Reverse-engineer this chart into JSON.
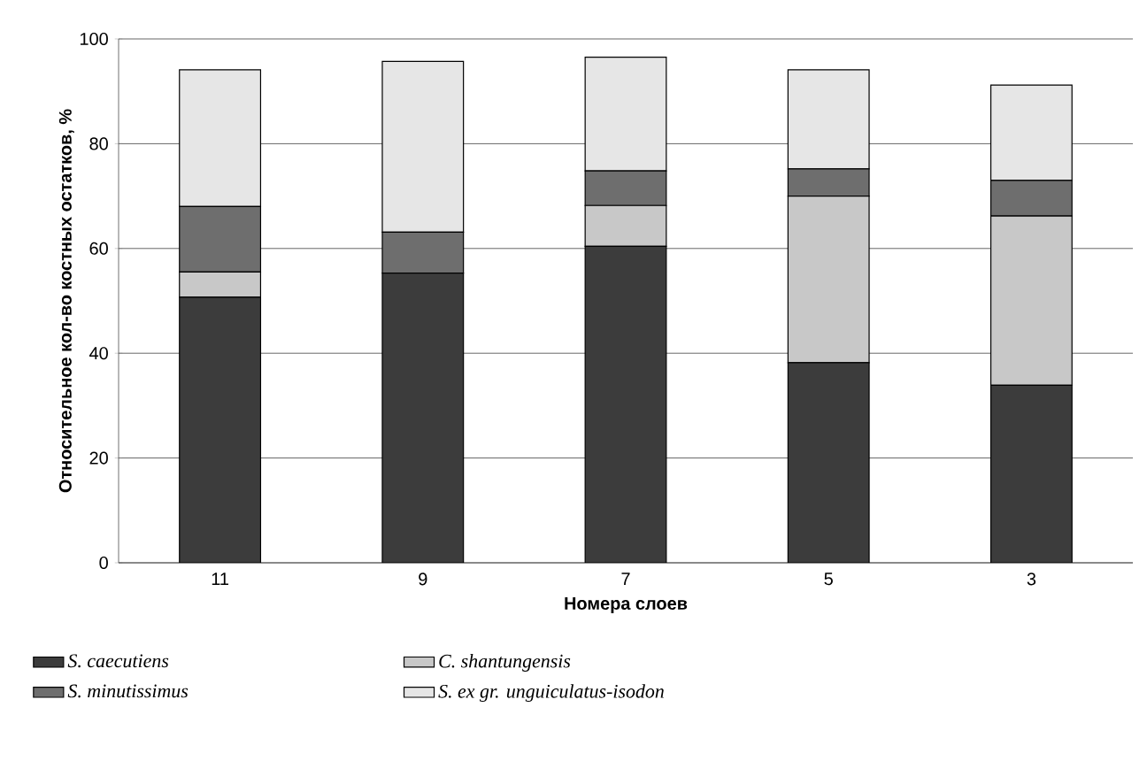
{
  "chart_data": {
    "type": "bar",
    "stacked": true,
    "xlabel": "Номера слоев",
    "ylabel": "Относительное кол-во костных остатков, %",
    "categories": [
      "11",
      "9",
      "7",
      "5",
      "3"
    ],
    "series": [
      {
        "name": "S. caecutiens",
        "color": "#3c3c3c",
        "values": [
          50.7,
          55.3,
          60.4,
          38.2,
          33.9
        ]
      },
      {
        "name": "C. shantungensis",
        "color": "#c8c8c8",
        "values": [
          4.8,
          0,
          7.8,
          31.8,
          32.3
        ]
      },
      {
        "name": "S. minutissimus",
        "color": "#6e6e6e",
        "values": [
          12.5,
          7.8,
          6.6,
          5.2,
          6.8
        ]
      },
      {
        "name": "S. ex gr. unguiculatus-isodon",
        "color": "#e6e6e6",
        "values": [
          26.1,
          32.6,
          21.7,
          18.9,
          18.2
        ]
      }
    ],
    "ylim": [
      0,
      100
    ],
    "yticks": [
      0,
      20,
      40,
      60,
      80,
      100
    ],
    "grid": "y",
    "legend": "bottom"
  }
}
